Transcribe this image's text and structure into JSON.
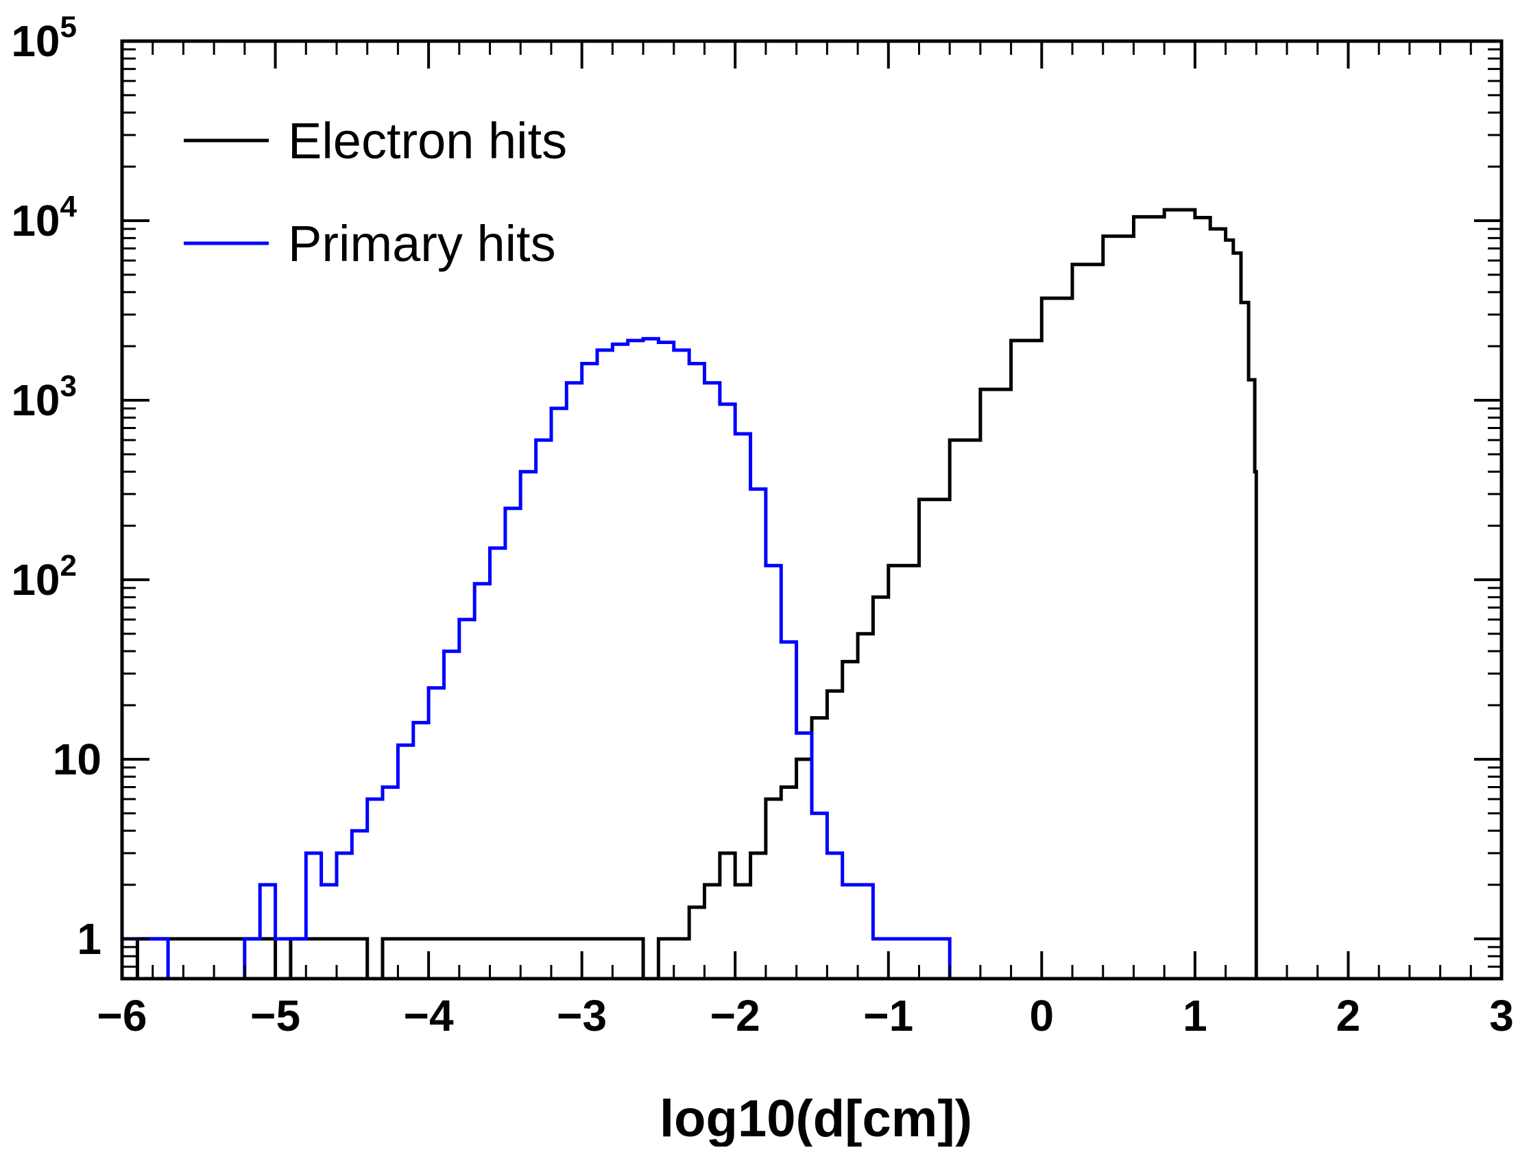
{
  "chart_data": {
    "type": "line",
    "title": "",
    "xlabel": "log10(d[cm])",
    "ylabel": "",
    "xscale": "linear",
    "yscale": "log",
    "xlim": [
      -6,
      3
    ],
    "ylim": [
      0.6,
      100000
    ],
    "x_ticks": [
      -6,
      -5,
      -4,
      -3,
      -2,
      -1,
      0,
      1,
      2,
      3
    ],
    "x_tick_labels": [
      "−6",
      "−5",
      "−4",
      "−3",
      "−2",
      "−1",
      "0",
      "1",
      "2",
      "3"
    ],
    "y_ticks": [
      1,
      10,
      100,
      1000,
      10000,
      100000
    ],
    "y_tick_labels": [
      {
        "base": "1",
        "exp": ""
      },
      {
        "base": "10",
        "exp": ""
      },
      {
        "base": "10",
        "exp": "2"
      },
      {
        "base": "10",
        "exp": "3"
      },
      {
        "base": "10",
        "exp": "4"
      },
      {
        "base": "10",
        "exp": "5"
      }
    ],
    "grid": false,
    "legend_position": "top-left",
    "series": [
      {
        "name": "Electron hits",
        "color": "#000000",
        "style": "step",
        "x": [
          -6.0,
          -5.9,
          -5.0,
          -4.9,
          -4.4,
          -4.3,
          -2.6,
          -2.5,
          -2.4,
          -2.3,
          -2.2,
          -2.1,
          -2.0,
          -1.9,
          -1.8,
          -1.7,
          -1.6,
          -1.5,
          -1.4,
          -1.3,
          -1.2,
          -1.1,
          -1.0,
          -0.8,
          -0.6,
          -0.4,
          -0.2,
          0.0,
          0.2,
          0.4,
          0.6,
          0.8,
          1.0,
          1.1,
          1.2,
          1.25,
          1.3,
          1.35,
          1.39,
          1.4,
          3.0
        ],
        "y": [
          0,
          1,
          0,
          1,
          0,
          1,
          0,
          1,
          1,
          1.5,
          2,
          3,
          2,
          3,
          6,
          7,
          10,
          17,
          24,
          35,
          50,
          80,
          120,
          280,
          600,
          1150,
          2150,
          3700,
          5700,
          8200,
          10500,
          11500,
          10400,
          9000,
          7800,
          6600,
          3500,
          1300,
          400,
          0,
          0
        ]
      },
      {
        "name": "Primary hits",
        "color": "#0000ff",
        "style": "step",
        "x": [
          -6.0,
          -5.9,
          -5.8,
          -5.7,
          -5.2,
          -5.1,
          -5.0,
          -4.9,
          -4.8,
          -4.7,
          -4.6,
          -4.5,
          -4.4,
          -4.3,
          -4.2,
          -4.1,
          -4.0,
          -3.9,
          -3.8,
          -3.7,
          -3.6,
          -3.5,
          -3.4,
          -3.3,
          -3.2,
          -3.1,
          -3.0,
          -2.9,
          -2.8,
          -2.7,
          -2.6,
          -2.5,
          -2.4,
          -2.3,
          -2.2,
          -2.1,
          -2.0,
          -1.9,
          -1.8,
          -1.7,
          -1.6,
          -1.5,
          -1.4,
          -1.3,
          -1.2,
          -1.1,
          -1.0,
          -0.9,
          -0.8,
          -0.7,
          -0.6,
          3.0
        ],
        "y": [
          1,
          1,
          1,
          0,
          1,
          2,
          1,
          1,
          3,
          2,
          3,
          4,
          6,
          7,
          12,
          16,
          25,
          40,
          60,
          95,
          150,
          250,
          400,
          600,
          900,
          1250,
          1600,
          1900,
          2050,
          2150,
          2200,
          2100,
          1900,
          1600,
          1250,
          950,
          650,
          320,
          120,
          45,
          14,
          5,
          3,
          2,
          2,
          1,
          1,
          1,
          1,
          1,
          0,
          0
        ]
      }
    ]
  }
}
